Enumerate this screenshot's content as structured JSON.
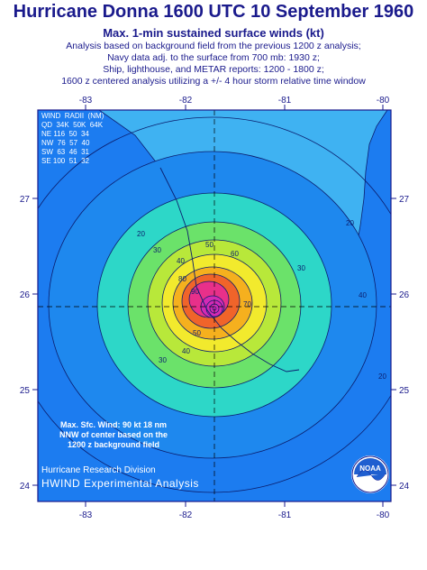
{
  "header": {
    "title": "Hurricane Donna 1600 UTC 10 September 1960",
    "subtitle": "Max. 1-min sustained surface winds (kt)",
    "notes": [
      "Analysis based on background field from the previous 1200 z analysis;",
      "Navy  data adj. to the surface from 700 mb: 1930 z;",
      "Ship, lighthouse, and METAR reports: 1200 - 1800 z;",
      "1600 z centered analysis utilizing a +/- 4 hour storm relative time window"
    ]
  },
  "map": {
    "lon_ticks": [
      "-83",
      "-82",
      "-81",
      "-80"
    ],
    "lat_ticks": [
      "27",
      "26",
      "25",
      "24"
    ],
    "contour_labels": [
      "20",
      "30",
      "40",
      "50",
      "60",
      "80",
      "90",
      "70",
      "50",
      "40",
      "30",
      "30",
      "20",
      "40",
      "20"
    ],
    "colors": {
      "ocean": "#1c7cf0",
      "land": "#3fb2f2",
      "c30": "#2dd7c8",
      "c40": "#6be26a",
      "c50": "#b8e83a",
      "c60": "#f2ea2d",
      "c70": "#f5b01e",
      "c80": "#f0642a",
      "c90": "#e8308a",
      "c100": "#d42ab4",
      "border": "#1a1a8c"
    }
  },
  "wind_radii": {
    "header1": "WIND  RADII  (NM)",
    "header2": "QD  34K  50K  64K",
    "rows": [
      {
        "q": "NE",
        "r34": "116",
        "r50": "50",
        "r64": "34"
      },
      {
        "q": "NW",
        "r34": "76",
        "r50": "57",
        "r64": "40"
      },
      {
        "q": "SW",
        "r34": "63",
        "r50": "46",
        "r64": "31"
      },
      {
        "q": "SE",
        "r34": "100",
        "r50": "51",
        "r64": "32"
      }
    ]
  },
  "max_wind": [
    "Max. Sfc. Wind: 90 kt 18 nm",
    "NNW of center based on the",
    "1200 z background field"
  ],
  "credits": {
    "division": "Hurricane Research Division",
    "product": "HWIND Experimental Analysis",
    "logo_text": "NOAA"
  }
}
